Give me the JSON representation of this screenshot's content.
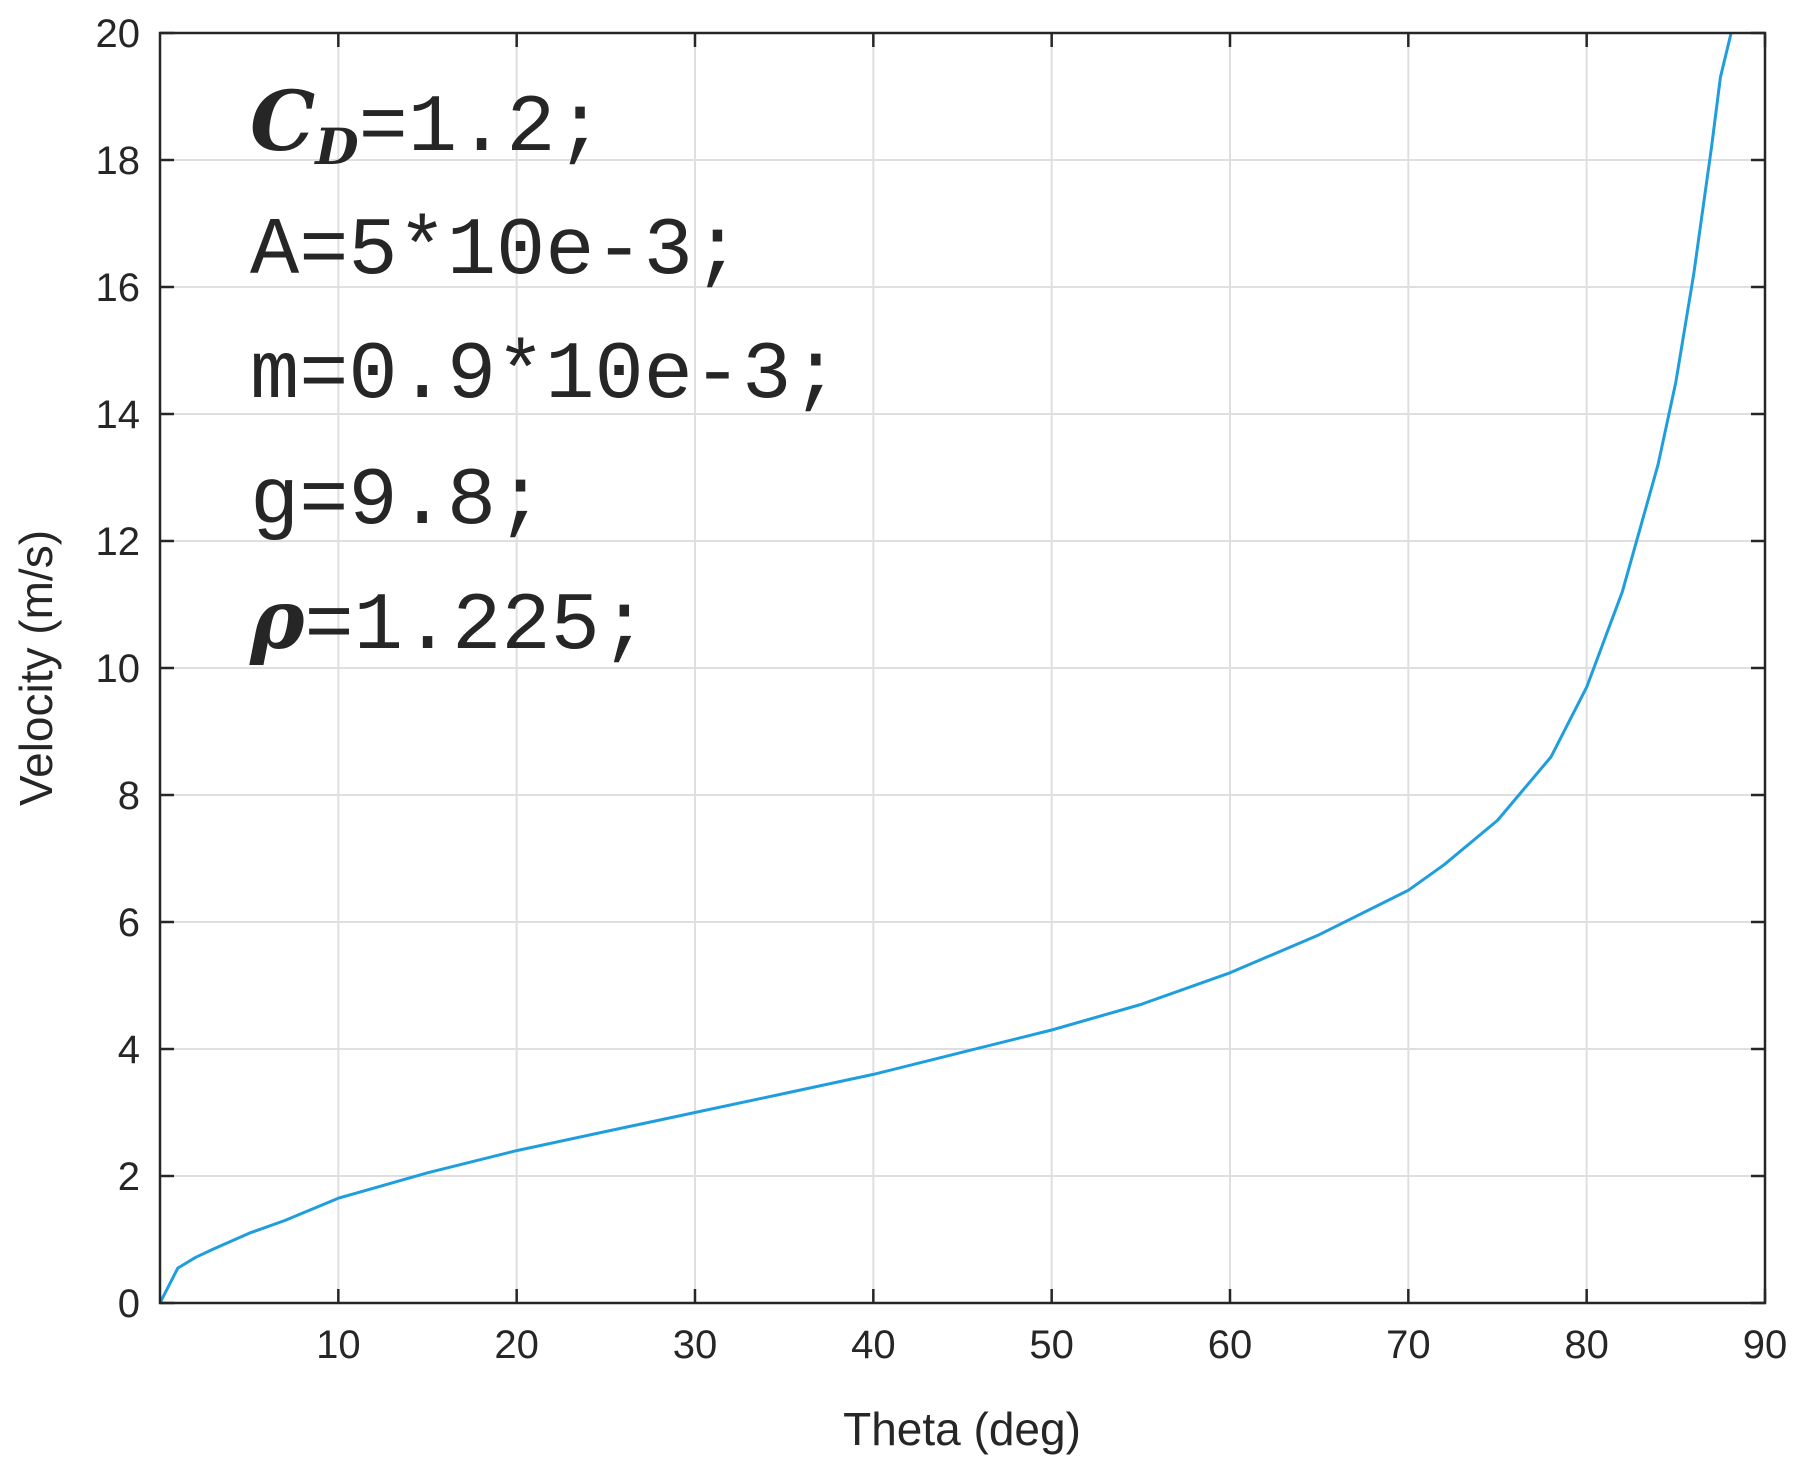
{
  "chart_data": {
    "type": "line",
    "title": "",
    "xlabel": "Theta (deg)",
    "ylabel": "Velocity (m/s)",
    "xlim": [
      0,
      90
    ],
    "ylim": [
      0,
      20
    ],
    "xticks": [
      "10",
      "20",
      "30",
      "40",
      "50",
      "60",
      "70",
      "80",
      "90"
    ],
    "xtick_values": [
      10,
      20,
      30,
      40,
      50,
      60,
      70,
      80,
      90
    ],
    "yticks": [
      "0",
      "2",
      "4",
      "6",
      "8",
      "10",
      "12",
      "14",
      "16",
      "18",
      "20"
    ],
    "ytick_values": [
      0,
      2,
      4,
      6,
      8,
      10,
      12,
      14,
      16,
      18,
      20
    ],
    "grid": true,
    "line_color": "#1f9ede",
    "series": [
      {
        "x": [
          0,
          1,
          2,
          3,
          5,
          7,
          10,
          15,
          20,
          25,
          30,
          35,
          40,
          45,
          50,
          55,
          60,
          65,
          70,
          72,
          75,
          78,
          80,
          82,
          84,
          85,
          86,
          87,
          87.5,
          88.1
        ],
        "y": [
          0,
          0.55,
          0.72,
          0.85,
          1.1,
          1.3,
          1.65,
          2.05,
          2.4,
          2.7,
          3.0,
          3.3,
          3.6,
          3.95,
          4.3,
          4.7,
          5.2,
          5.8,
          6.5,
          6.9,
          7.6,
          8.6,
          9.7,
          11.2,
          13.2,
          14.5,
          16.2,
          18.2,
          19.3,
          20.0
        ]
      }
    ],
    "annotation_lines": [
      {
        "symbol": "C",
        "subscript": "D",
        "text": "=1.2;"
      },
      {
        "symbol": "",
        "subscript": "",
        "text": "A=5*10e-3;"
      },
      {
        "symbol": "",
        "subscript": "",
        "text": "m=0.9*10e-3;"
      },
      {
        "symbol": "",
        "subscript": "",
        "text": "g=9.8;"
      },
      {
        "symbol": "ρ",
        "subscript": "",
        "text": "=1.225;"
      }
    ]
  }
}
